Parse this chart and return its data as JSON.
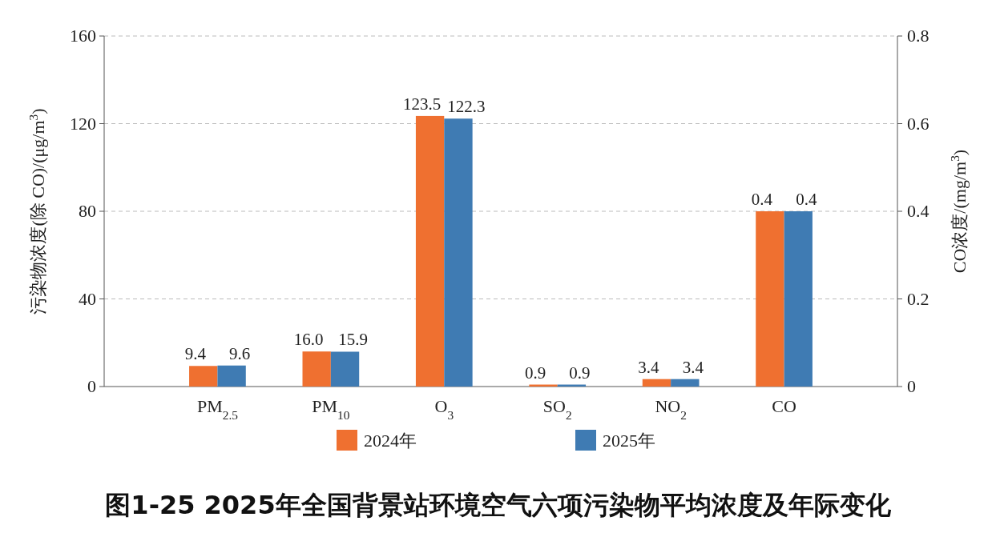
{
  "chart_data": {
    "type": "bar",
    "title": "图1-25  2025年全国背景站环境空气六项污染物平均浓度及年际变化",
    "ylabel": "污染物浓度(除 CO)/(μg/m$^{3}$)",
    "y2label": "CO浓度/(mg/m$^{3}$)",
    "categories": [
      "PM$_{2.5}$",
      "PM$_{10}$",
      "O$_{3}$",
      "SO$_{2}$",
      "NO$_{2}$",
      "CO"
    ],
    "series": [
      {
        "name": "2024年",
        "color": "#ef7030",
        "values": [
          9.4,
          16.0,
          123.5,
          0.9,
          3.4,
          null
        ],
        "value_labels": [
          "9.4",
          "16.0",
          "123.5",
          "0.9",
          "3.4",
          null
        ]
      },
      {
        "name": "2025年",
        "color": "#3f7bb3",
        "values": [
          9.6,
          15.9,
          122.3,
          0.9,
          3.4,
          null
        ],
        "value_labels": [
          "9.6",
          "15.9",
          "122.3",
          "0.9",
          "3.4",
          null
        ]
      },
      {
        "color": "#ef7030",
        "axis": "y2",
        "values": [
          null,
          null,
          null,
          null,
          null,
          0.4
        ],
        "value_labels": [
          null,
          null,
          null,
          null,
          null,
          "0.4"
        ]
      },
      {
        "color": "#3f7bb3",
        "axis": "y2",
        "values": [
          null,
          null,
          null,
          null,
          null,
          0.4
        ],
        "value_labels": [
          null,
          null,
          null,
          null,
          null,
          "0.4"
        ]
      }
    ],
    "ylim": [
      0,
      160
    ],
    "yticks": [
      0,
      40,
      80,
      120,
      160
    ],
    "y2lim": [
      0,
      0.8
    ],
    "y2ticks": [
      0,
      0.2,
      0.4,
      0.6,
      0.8
    ],
    "grid": "y",
    "legend": "bottom"
  }
}
